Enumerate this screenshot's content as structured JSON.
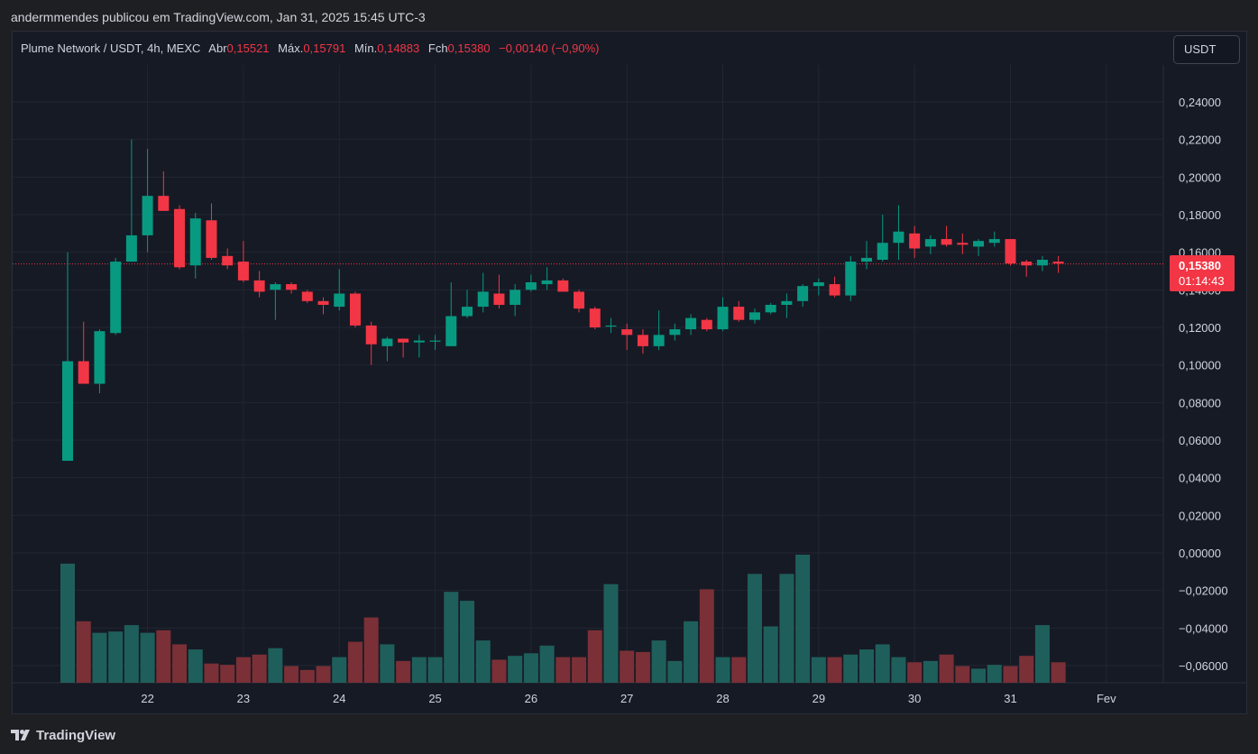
{
  "header": {
    "published_by": "andermmendes publicou em TradingView.com, Jan 31, 2025 15:45 UTC-3"
  },
  "legend": {
    "symbol": "Plume Network / USDT, 4h, MEXC",
    "open_label": "Abr",
    "open_value": "0,15521",
    "high_label": "Máx.",
    "high_value": "0,15791",
    "low_label": "Mín.",
    "low_value": "0,14883",
    "close_label": "Fch",
    "close_value": "0,15380",
    "change_value": "−0,00140 (−0,90%)"
  },
  "currency_button": {
    "label": "USDT"
  },
  "price_tag": {
    "price": "0,15380",
    "countdown": "01:14:43"
  },
  "footer": {
    "brand": "TradingView",
    "logo_icon": "tradingview-logo-icon"
  },
  "colors": {
    "up": "#089981",
    "down": "#f23645",
    "up_volume": "#1f5f5b",
    "down_volume": "#7a3036",
    "grid": "#222632",
    "background": "#161a25"
  },
  "chart_data": {
    "type": "candlestick",
    "interval": "4h",
    "y_axis": {
      "min": -0.068,
      "max": 0.25,
      "ticks": [
        0.24,
        0.22,
        0.2,
        0.18,
        0.16,
        0.14,
        0.12,
        0.1,
        0.08,
        0.06,
        0.04,
        0.02,
        0.0,
        -0.02,
        -0.04,
        -0.06
      ],
      "tick_labels": [
        "0,24000",
        "0,22000",
        "0,20000",
        "0,18000",
        "0,16000",
        "0,14000",
        "0,12000",
        "0,10000",
        "0,08000",
        "0,06000",
        "0,04000",
        "0,02000",
        "0,00000",
        "−0,02000",
        "−0,04000",
        "−0,06000"
      ]
    },
    "x_axis": {
      "labels": [
        "22",
        "23",
        "24",
        "25",
        "26",
        "27",
        "28",
        "29",
        "30",
        "31",
        "Fev"
      ],
      "label_candle_index": [
        5.0,
        11.0,
        17.0,
        23.0,
        29.0,
        35.0,
        41.0,
        47.0,
        53.0,
        59.0,
        65.0
      ]
    },
    "last_price": 0.1538,
    "candles": [
      {
        "o": 0.049,
        "h": 0.16,
        "l": 0.049,
        "c": 0.102
      },
      {
        "o": 0.102,
        "h": 0.123,
        "l": 0.09,
        "c": 0.09
      },
      {
        "o": 0.09,
        "h": 0.119,
        "l": 0.085,
        "c": 0.118
      },
      {
        "o": 0.117,
        "h": 0.157,
        "l": 0.116,
        "c": 0.155
      },
      {
        "o": 0.155,
        "h": 0.22,
        "l": 0.155,
        "c": 0.169
      },
      {
        "o": 0.169,
        "h": 0.215,
        "l": 0.16,
        "c": 0.19
      },
      {
        "o": 0.19,
        "h": 0.203,
        "l": 0.182,
        "c": 0.182
      },
      {
        "o": 0.183,
        "h": 0.185,
        "l": 0.151,
        "c": 0.152
      },
      {
        "o": 0.153,
        "h": 0.181,
        "l": 0.146,
        "c": 0.178
      },
      {
        "o": 0.177,
        "h": 0.186,
        "l": 0.156,
        "c": 0.157
      },
      {
        "o": 0.158,
        "h": 0.162,
        "l": 0.151,
        "c": 0.153
      },
      {
        "o": 0.155,
        "h": 0.166,
        "l": 0.144,
        "c": 0.145
      },
      {
        "o": 0.145,
        "h": 0.15,
        "l": 0.136,
        "c": 0.139
      },
      {
        "o": 0.14,
        "h": 0.144,
        "l": 0.124,
        "c": 0.143
      },
      {
        "o": 0.143,
        "h": 0.144,
        "l": 0.138,
        "c": 0.14
      },
      {
        "o": 0.139,
        "h": 0.14,
        "l": 0.133,
        "c": 0.134
      },
      {
        "o": 0.134,
        "h": 0.136,
        "l": 0.127,
        "c": 0.132
      },
      {
        "o": 0.131,
        "h": 0.151,
        "l": 0.129,
        "c": 0.138
      },
      {
        "o": 0.138,
        "h": 0.139,
        "l": 0.12,
        "c": 0.121
      },
      {
        "o": 0.121,
        "h": 0.123,
        "l": 0.1,
        "c": 0.111
      },
      {
        "o": 0.11,
        "h": 0.115,
        "l": 0.102,
        "c": 0.114
      },
      {
        "o": 0.114,
        "h": 0.114,
        "l": 0.104,
        "c": 0.112
      },
      {
        "o": 0.112,
        "h": 0.116,
        "l": 0.104,
        "c": 0.113
      },
      {
        "o": 0.113,
        "h": 0.116,
        "l": 0.108,
        "c": 0.113
      },
      {
        "o": 0.11,
        "h": 0.144,
        "l": 0.11,
        "c": 0.126
      },
      {
        "o": 0.126,
        "h": 0.14,
        "l": 0.125,
        "c": 0.131
      },
      {
        "o": 0.131,
        "h": 0.149,
        "l": 0.128,
        "c": 0.139
      },
      {
        "o": 0.138,
        "h": 0.148,
        "l": 0.13,
        "c": 0.132
      },
      {
        "o": 0.132,
        "h": 0.143,
        "l": 0.126,
        "c": 0.14
      },
      {
        "o": 0.14,
        "h": 0.148,
        "l": 0.139,
        "c": 0.144
      },
      {
        "o": 0.143,
        "h": 0.152,
        "l": 0.14,
        "c": 0.145
      },
      {
        "o": 0.145,
        "h": 0.146,
        "l": 0.139,
        "c": 0.139
      },
      {
        "o": 0.139,
        "h": 0.14,
        "l": 0.128,
        "c": 0.13
      },
      {
        "o": 0.13,
        "h": 0.131,
        "l": 0.119,
        "c": 0.12
      },
      {
        "o": 0.121,
        "h": 0.125,
        "l": 0.117,
        "c": 0.121
      },
      {
        "o": 0.119,
        "h": 0.122,
        "l": 0.108,
        "c": 0.116
      },
      {
        "o": 0.116,
        "h": 0.119,
        "l": 0.106,
        "c": 0.11
      },
      {
        "o": 0.11,
        "h": 0.129,
        "l": 0.108,
        "c": 0.116
      },
      {
        "o": 0.116,
        "h": 0.122,
        "l": 0.113,
        "c": 0.119
      },
      {
        "o": 0.119,
        "h": 0.127,
        "l": 0.116,
        "c": 0.125
      },
      {
        "o": 0.124,
        "h": 0.125,
        "l": 0.118,
        "c": 0.119
      },
      {
        "o": 0.119,
        "h": 0.136,
        "l": 0.118,
        "c": 0.131
      },
      {
        "o": 0.131,
        "h": 0.134,
        "l": 0.123,
        "c": 0.124
      },
      {
        "o": 0.124,
        "h": 0.13,
        "l": 0.122,
        "c": 0.128
      },
      {
        "o": 0.128,
        "h": 0.133,
        "l": 0.127,
        "c": 0.132
      },
      {
        "o": 0.132,
        "h": 0.138,
        "l": 0.125,
        "c": 0.134
      },
      {
        "o": 0.134,
        "h": 0.143,
        "l": 0.131,
        "c": 0.142
      },
      {
        "o": 0.142,
        "h": 0.146,
        "l": 0.137,
        "c": 0.144
      },
      {
        "o": 0.143,
        "h": 0.147,
        "l": 0.136,
        "c": 0.137
      },
      {
        "o": 0.137,
        "h": 0.158,
        "l": 0.134,
        "c": 0.155
      },
      {
        "o": 0.155,
        "h": 0.166,
        "l": 0.151,
        "c": 0.157
      },
      {
        "o": 0.156,
        "h": 0.18,
        "l": 0.155,
        "c": 0.165
      },
      {
        "o": 0.165,
        "h": 0.185,
        "l": 0.156,
        "c": 0.171
      },
      {
        "o": 0.17,
        "h": 0.174,
        "l": 0.157,
        "c": 0.162
      },
      {
        "o": 0.163,
        "h": 0.169,
        "l": 0.159,
        "c": 0.167
      },
      {
        "o": 0.167,
        "h": 0.174,
        "l": 0.163,
        "c": 0.164
      },
      {
        "o": 0.165,
        "h": 0.17,
        "l": 0.159,
        "c": 0.164
      },
      {
        "o": 0.163,
        "h": 0.167,
        "l": 0.158,
        "c": 0.166
      },
      {
        "o": 0.165,
        "h": 0.171,
        "l": 0.163,
        "c": 0.167
      },
      {
        "o": 0.167,
        "h": 0.167,
        "l": 0.153,
        "c": 0.154
      },
      {
        "o": 0.155,
        "h": 0.156,
        "l": 0.147,
        "c": 0.153
      },
      {
        "o": 0.153,
        "h": 0.158,
        "l": 0.15,
        "c": 0.156
      },
      {
        "o": 0.155,
        "h": 0.158,
        "l": 0.149,
        "c": 0.154
      }
    ],
    "volume": {
      "max_relative": 1.0,
      "values": [
        0.93,
        0.48,
        0.39,
        0.4,
        0.45,
        0.39,
        0.41,
        0.3,
        0.26,
        0.15,
        0.14,
        0.2,
        0.22,
        0.27,
        0.13,
        0.1,
        0.13,
        0.2,
        0.32,
        0.51,
        0.3,
        0.17,
        0.2,
        0.2,
        0.71,
        0.64,
        0.33,
        0.18,
        0.21,
        0.23,
        0.29,
        0.2,
        0.2,
        0.41,
        0.77,
        0.25,
        0.24,
        0.33,
        0.17,
        0.48,
        0.73,
        0.2,
        0.2,
        0.85,
        0.44,
        0.85,
        1.0,
        0.2,
        0.2,
        0.22,
        0.26,
        0.3,
        0.2,
        0.16,
        0.17,
        0.22,
        0.13,
        0.11,
        0.14,
        0.13,
        0.21,
        0.45,
        0.16
      ]
    }
  }
}
